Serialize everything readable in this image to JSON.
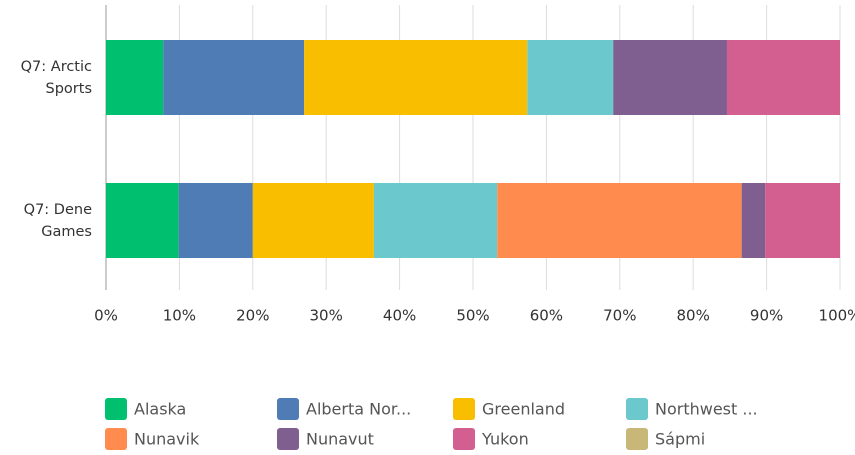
{
  "chart_data": {
    "type": "stacked-barh",
    "categories": [
      "Q7: Arctic Sports",
      "Q7: Dene Games"
    ],
    "series": [
      {
        "name": "Alaska",
        "color": "#00bf6f",
        "values": [
          7.8,
          9.9
        ]
      },
      {
        "name": "Alberta Nor...",
        "color": "#507cb6",
        "values": [
          19.2,
          10.1
        ]
      },
      {
        "name": "Greenland",
        "color": "#f9be00",
        "values": [
          30.4,
          16.5
        ]
      },
      {
        "name": "Northwest ...",
        "color": "#6bc8cd",
        "values": [
          11.7,
          16.8
        ]
      },
      {
        "name": "Nunavik",
        "color": "#ff8b4f",
        "values": [
          0,
          33.3
        ]
      },
      {
        "name": "Nunavut",
        "color": "#7f5f90",
        "values": [
          15.5,
          3.2
        ]
      },
      {
        "name": "Yukon",
        "color": "#d25f90",
        "values": [
          15.4,
          10.2
        ]
      },
      {
        "name": "Sápmi",
        "color": "#c9b77a",
        "values": [
          0,
          0
        ]
      }
    ],
    "xlim": [
      0,
      100
    ],
    "xticks": [
      {
        "value": 0,
        "label": "0%"
      },
      {
        "value": 10,
        "label": "10%"
      },
      {
        "value": 20,
        "label": "20%"
      },
      {
        "value": 30,
        "label": "30%"
      },
      {
        "value": 40,
        "label": "40%"
      },
      {
        "value": 50,
        "label": "50%"
      },
      {
        "value": 60,
        "label": "60%"
      },
      {
        "value": 70,
        "label": "70%"
      },
      {
        "value": 80,
        "label": "80%"
      },
      {
        "value": 90,
        "label": "90%"
      },
      {
        "value": 100,
        "label": "100%"
      }
    ],
    "grid": true
  }
}
